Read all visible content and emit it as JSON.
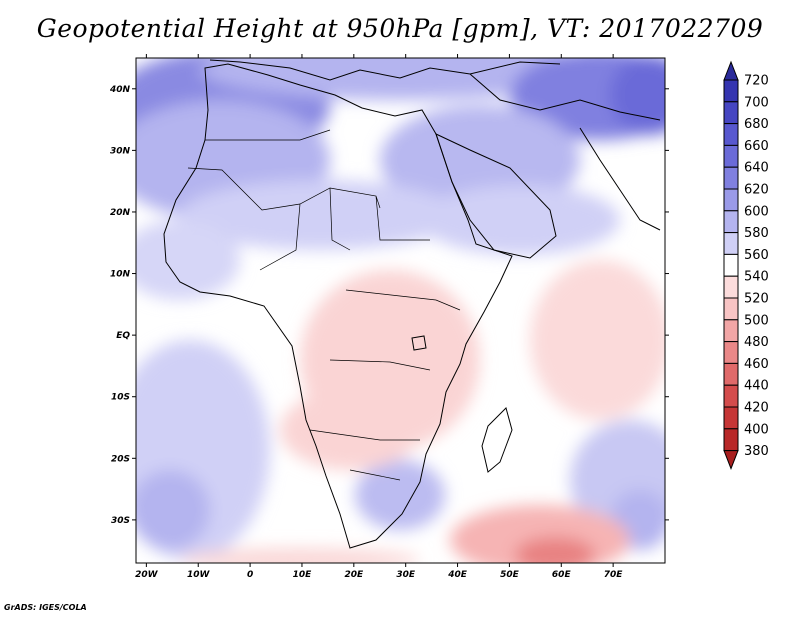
{
  "title": "Geopotential Height at 950hPa [gpm], VT: 2017022709",
  "credit": "GrADS: IGES/COLA",
  "map": {
    "lon_range": [
      -22,
      80
    ],
    "lat_range": [
      -37,
      45
    ],
    "lon_ticks": [
      {
        "lon": -20,
        "label": "20W"
      },
      {
        "lon": -10,
        "label": "10W"
      },
      {
        "lon": 0,
        "label": "0"
      },
      {
        "lon": 10,
        "label": "10E"
      },
      {
        "lon": 20,
        "label": "20E"
      },
      {
        "lon": 30,
        "label": "30E"
      },
      {
        "lon": 40,
        "label": "40E"
      },
      {
        "lon": 50,
        "label": "50E"
      },
      {
        "lon": 60,
        "label": "60E"
      },
      {
        "lon": 70,
        "label": "70E"
      }
    ],
    "lat_ticks": [
      {
        "lat": 40,
        "label": "40N"
      },
      {
        "lat": 30,
        "label": "30N"
      },
      {
        "lat": 20,
        "label": "20N"
      },
      {
        "lat": 10,
        "label": "10N"
      },
      {
        "lat": 0,
        "label": "EQ"
      },
      {
        "lat": -10,
        "label": "10S"
      },
      {
        "lat": -20,
        "label": "20S"
      },
      {
        "lat": -30,
        "label": "30S"
      }
    ]
  },
  "colorbar": {
    "levels": [
      720,
      700,
      680,
      660,
      640,
      620,
      600,
      580,
      560,
      540,
      520,
      500,
      480,
      460,
      440,
      420,
      400,
      380
    ],
    "colors": [
      "#2a2a9a",
      "#3535b0",
      "#4646c2",
      "#5858cf",
      "#6b6bd8",
      "#8080e0",
      "#9a9ae8",
      "#b4b4ef",
      "#d0d0f6",
      "#ffffff",
      "#fcdcdc",
      "#f8c4c4",
      "#f2a6a6",
      "#ea8888",
      "#e06a6a",
      "#d44c4c",
      "#c63636",
      "#b82828",
      "#a81e1e"
    ]
  }
}
